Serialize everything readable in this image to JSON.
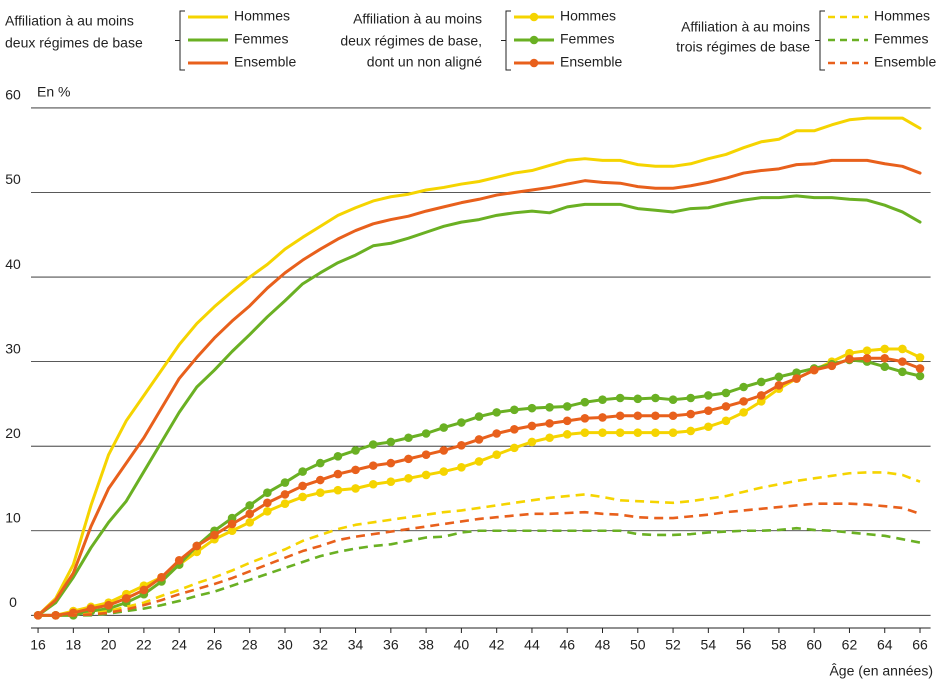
{
  "chart_data": {
    "type": "line",
    "y_label": "En %",
    "x_label": "Âge (en années)",
    "legend_groups": [
      {
        "title": [
          "Affiliation à au moins",
          "deux régimes de base"
        ],
        "style": "solid"
      },
      {
        "title": [
          "Affiliation à au moins",
          "deux régimes de base,",
          "dont un non aligné"
        ],
        "style": "markers"
      },
      {
        "title": [
          "Affiliation à au moins",
          "trois régimes de base"
        ],
        "style": "dashed"
      }
    ],
    "x": [
      16,
      17,
      18,
      19,
      20,
      21,
      22,
      23,
      24,
      25,
      26,
      27,
      28,
      29,
      30,
      31,
      32,
      33,
      34,
      35,
      36,
      37,
      38,
      39,
      40,
      41,
      42,
      43,
      44,
      45,
      46,
      47,
      48,
      49,
      50,
      51,
      52,
      53,
      54,
      55,
      56,
      57,
      58,
      59,
      60,
      61,
      62,
      63,
      64,
      65,
      66
    ],
    "xlim": [
      15.6,
      66.6
    ],
    "xticks": [
      16,
      18,
      20,
      22,
      24,
      26,
      28,
      30,
      32,
      34,
      36,
      38,
      40,
      42,
      44,
      46,
      48,
      50,
      52,
      54,
      56,
      58,
      60,
      62,
      64,
      66
    ],
    "ylim": [
      -1.5,
      61
    ],
    "yticks": [
      0,
      10,
      20,
      30,
      40,
      50,
      60
    ],
    "grid": true,
    "series": [
      {
        "name": "Hommes",
        "color": "#f5d400",
        "values": [
          0,
          2,
          6,
          13,
          19,
          23,
          26,
          29,
          32,
          34.5,
          36.5,
          38.3,
          40,
          41.5,
          43.3,
          44.7,
          46,
          47.3,
          48.2,
          49,
          49.5,
          49.8,
          50.3,
          50.6,
          51,
          51.3,
          51.8,
          52.3,
          52.6,
          53.2,
          53.8,
          54,
          53.8,
          53.8,
          53.3,
          53.1,
          53.1,
          53.4,
          54,
          54.5,
          55.3,
          56,
          56.3,
          57.3,
          57.3,
          58,
          58.6,
          58.8,
          58.8,
          58.8,
          57.6
        ]
      },
      {
        "name": "Femmes",
        "color": "#6ab023",
        "values": [
          0,
          1.5,
          4.5,
          8,
          11,
          13.5,
          17,
          20.5,
          24,
          27,
          29,
          31.2,
          33.2,
          35.3,
          37.2,
          39.2,
          40.5,
          41.7,
          42.6,
          43.7,
          44,
          44.6,
          45.3,
          46,
          46.5,
          46.8,
          47.3,
          47.6,
          47.8,
          47.6,
          48.3,
          48.6,
          48.6,
          48.6,
          48.1,
          47.9,
          47.7,
          48.1,
          48.2,
          48.7,
          49.1,
          49.4,
          49.4,
          49.6,
          49.4,
          49.4,
          49.2,
          49.1,
          48.5,
          47.7,
          46.5
        ]
      },
      {
        "name": "Ensemble",
        "color": "#e8601c",
        "values": [
          0,
          1.8,
          5,
          10.5,
          15,
          18,
          21,
          24.5,
          28,
          30.5,
          32.8,
          34.8,
          36.6,
          38.7,
          40.5,
          42,
          43.3,
          44.5,
          45.5,
          46.3,
          46.8,
          47.2,
          47.8,
          48.3,
          48.8,
          49.2,
          49.7,
          50,
          50.3,
          50.6,
          51,
          51.4,
          51.2,
          51.1,
          50.7,
          50.5,
          50.5,
          50.8,
          51.2,
          51.7,
          52.3,
          52.6,
          52.8,
          53.3,
          53.4,
          53.8,
          53.8,
          53.8,
          53.4,
          53.1,
          52.3
        ]
      },
      {
        "name": "Hommes",
        "color": "#f5d400",
        "values": [
          0,
          0,
          0.5,
          1,
          1.5,
          2.5,
          3.5,
          4.5,
          6,
          7.5,
          9,
          10,
          11,
          12.3,
          13.2,
          14,
          14.5,
          14.8,
          15,
          15.5,
          15.8,
          16.2,
          16.6,
          17,
          17.5,
          18.2,
          19,
          19.8,
          20.5,
          21,
          21.4,
          21.6,
          21.6,
          21.6,
          21.6,
          21.6,
          21.6,
          21.8,
          22.3,
          23,
          24,
          25.3,
          26.8,
          28,
          29,
          30,
          31,
          31.3,
          31.5,
          31.5,
          30.5
        ]
      },
      {
        "name": "Femmes",
        "color": "#6ab023",
        "values": [
          0,
          0,
          0,
          0.5,
          0.8,
          1.5,
          2.5,
          4,
          6,
          8.2,
          10,
          11.5,
          13,
          14.5,
          15.7,
          17,
          18,
          18.8,
          19.5,
          20.2,
          20.5,
          21,
          21.5,
          22.2,
          22.8,
          23.5,
          24,
          24.3,
          24.5,
          24.6,
          24.7,
          25.2,
          25.5,
          25.7,
          25.6,
          25.7,
          25.5,
          25.7,
          26,
          26.3,
          27,
          27.6,
          28.2,
          28.7,
          29.2,
          29.7,
          30.2,
          30,
          29.4,
          28.8,
          28.3
        ]
      },
      {
        "name": "Ensemble",
        "color": "#e8601c",
        "values": [
          0,
          0,
          0.3,
          0.8,
          1.2,
          2,
          3,
          4.5,
          6.5,
          8.2,
          9.5,
          10.8,
          12,
          13.3,
          14.3,
          15.3,
          16,
          16.7,
          17.2,
          17.7,
          18,
          18.5,
          19,
          19.5,
          20.1,
          20.8,
          21.5,
          22,
          22.4,
          22.7,
          23,
          23.3,
          23.4,
          23.6,
          23.6,
          23.6,
          23.6,
          23.8,
          24.2,
          24.7,
          25.3,
          26,
          27.2,
          28,
          29,
          29.5,
          30.3,
          30.4,
          30.4,
          30,
          29.2
        ]
      },
      {
        "name": "Hommes",
        "color": "#f5d400",
        "values": [
          0,
          0,
          0,
          0.2,
          0.5,
          1,
          1.5,
          2.3,
          3,
          3.8,
          4.5,
          5.3,
          6.2,
          7,
          7.8,
          8.8,
          9.5,
          10.2,
          10.7,
          11,
          11.3,
          11.6,
          11.9,
          12.2,
          12.4,
          12.7,
          13,
          13.3,
          13.6,
          13.9,
          14.1,
          14.3,
          14,
          13.6,
          13.5,
          13.4,
          13.3,
          13.5,
          13.8,
          14.1,
          14.6,
          15.1,
          15.5,
          15.9,
          16.2,
          16.5,
          16.8,
          16.9,
          16.9,
          16.6,
          15.8
        ]
      },
      {
        "name": "Femmes",
        "color": "#6ab023",
        "values": [
          0,
          0,
          0,
          0,
          0.2,
          0.5,
          0.8,
          1.2,
          1.7,
          2.3,
          2.8,
          3.5,
          4.2,
          4.9,
          5.6,
          6.3,
          7,
          7.5,
          7.9,
          8.2,
          8.4,
          8.8,
          9.2,
          9.3,
          9.8,
          10,
          10,
          10,
          10,
          10,
          10,
          10,
          10,
          10,
          9.6,
          9.5,
          9.5,
          9.6,
          9.8,
          9.9,
          10,
          10,
          10.1,
          10.3,
          10.1,
          10,
          9.8,
          9.6,
          9.4,
          9,
          8.6
        ]
      },
      {
        "name": "Ensemble",
        "color": "#e8601c",
        "values": [
          0,
          0,
          0,
          0.1,
          0.3,
          0.7,
          1.2,
          1.8,
          2.5,
          3.1,
          3.7,
          4.4,
          5.2,
          6,
          6.8,
          7.6,
          8.2,
          8.9,
          9.3,
          9.6,
          9.9,
          10.2,
          10.5,
          10.8,
          11.1,
          11.4,
          11.6,
          11.8,
          12,
          12,
          12.1,
          12.2,
          12,
          11.9,
          11.6,
          11.5,
          11.5,
          11.7,
          11.9,
          12.2,
          12.4,
          12.6,
          12.8,
          13,
          13.2,
          13.2,
          13.2,
          13.1,
          12.9,
          12.7,
          12
        ]
      }
    ]
  }
}
